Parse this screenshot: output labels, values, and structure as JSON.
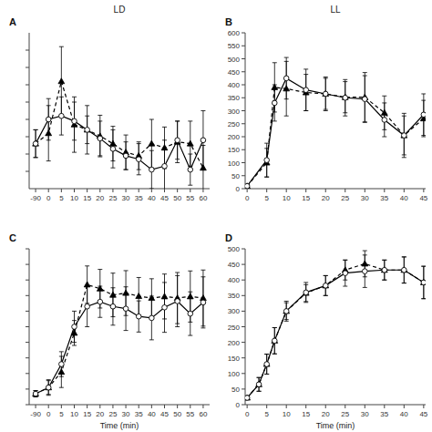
{
  "chart_data": [
    {
      "type": "line",
      "title": "A",
      "subtitle": "LD",
      "categories": [
        "-90",
        "0",
        "5",
        "10",
        "15",
        "20",
        "25",
        "30",
        "35",
        "40",
        "45",
        "50",
        "55",
        "60"
      ],
      "series": [
        {
          "values": [
            230,
            300,
            310,
            295,
            270,
            245,
            215,
            195,
            185,
            155,
            165,
            240,
            155,
            240
          ],
          "errors": [
            40,
            60,
            55,
            55,
            40,
            50,
            55,
            40,
            45,
            55,
            75,
            55,
            45,
            85
          ],
          "color": "#000000",
          "marker": "open-circle",
          "line_style": "solid"
        },
        {
          "values": [
            230,
            260,
            410,
            285,
            270,
            252,
            230,
            205,
            195,
            230,
            218,
            235,
            230,
            160
          ],
          "errors": [
            40,
            80,
            100,
            80,
            70,
            60,
            50,
            50,
            40,
            70,
            60,
            60,
            65,
            65
          ],
          "color": "#000000",
          "marker": "triangle",
          "line_style": "dashed"
        }
      ],
      "ylim": [
        100,
        550
      ],
      "yticks": [
        150,
        200,
        250,
        300,
        350,
        400,
        450,
        500
      ],
      "tick_labels": "x",
      "grid": false
    },
    {
      "type": "line",
      "title": "B",
      "subtitle": "LL",
      "x": [
        0,
        5,
        7,
        10,
        15,
        20,
        25,
        30,
        35,
        40,
        45
      ],
      "series": [
        {
          "values": [
            10,
            110,
            330,
            425,
            380,
            365,
            350,
            345,
            265,
            205,
            285
          ],
          "errors": [
            5,
            65,
            70,
            80,
            80,
            60,
            70,
            90,
            65,
            85,
            80
          ],
          "color": "#000000",
          "marker": "open-circle",
          "line_style": "solid"
        },
        {
          "values": [
            10,
            100,
            390,
            385,
            370,
            365,
            352,
            352,
            292,
            205,
            270
          ],
          "errors": [
            5,
            55,
            95,
            105,
            70,
            65,
            60,
            95,
            65,
            75,
            70
          ],
          "color": "#000000",
          "marker": "triangle",
          "line_style": "dashed"
        }
      ],
      "xlim": [
        -0.5,
        45.5
      ],
      "xticks": [
        0,
        5,
        10,
        15,
        20,
        25,
        30,
        35,
        40,
        45
      ],
      "ylim": [
        0,
        600
      ],
      "yticks": [
        0,
        50,
        100,
        150,
        200,
        250,
        300,
        350,
        400,
        450,
        500,
        550,
        600
      ],
      "tick_labels": true,
      "grid": false
    },
    {
      "type": "line",
      "title": "C",
      "x_label": "Time (min)",
      "categories": [
        "-90",
        "0",
        "5",
        "10",
        "15",
        "20",
        "25",
        "30",
        "35",
        "40",
        "45",
        "50",
        "55",
        "60"
      ],
      "series": [
        {
          "values": [
            35,
            55,
            130,
            250,
            315,
            330,
            315,
            308,
            283,
            278,
            312,
            332,
            292,
            328
          ],
          "errors": [
            10,
            25,
            40,
            50,
            65,
            50,
            60,
            70,
            50,
            70,
            80,
            82,
            70,
            82
          ],
          "color": "#000000",
          "marker": "open-circle",
          "line_style": "solid"
        },
        {
          "values": [
            35,
            55,
            105,
            230,
            385,
            372,
            352,
            358,
            348,
            342,
            347,
            342,
            347,
            342
          ],
          "errors": [
            10,
            22,
            50,
            40,
            60,
            62,
            70,
            72,
            60,
            62,
            72,
            82,
            82,
            90
          ],
          "color": "#000000",
          "marker": "triangle",
          "line_style": "dashed"
        }
      ],
      "ylim": [
        0,
        500
      ],
      "yticks": [
        0,
        50,
        100,
        150,
        200,
        250,
        300,
        350,
        400,
        450,
        500
      ],
      "tick_labels": "x",
      "grid": false
    },
    {
      "type": "line",
      "title": "D",
      "x_label": "Time (min)",
      "x": [
        0,
        3,
        5,
        7,
        10,
        15,
        20,
        25,
        30,
        35,
        40,
        45
      ],
      "series": [
        {
          "values": [
            22,
            65,
            130,
            205,
            300,
            360,
            382,
            422,
            428,
            432,
            432,
            392
          ],
          "errors": [
            5,
            22,
            32,
            42,
            32,
            32,
            32,
            42,
            52,
            32,
            42,
            52
          ],
          "color": "#000000",
          "marker": "open-circle",
          "line_style": "solid"
        },
        {
          "values": [
            22,
            65,
            130,
            205,
            300,
            358,
            382,
            432,
            452,
            432,
            432,
            392
          ],
          "errors": [
            5,
            22,
            32,
            42,
            27,
            27,
            32,
            32,
            42,
            32,
            42,
            52
          ],
          "color": "#000000",
          "marker": "triangle",
          "line_style": "dashed"
        }
      ],
      "xlim": [
        -0.5,
        45.5
      ],
      "xticks": [
        0,
        5,
        10,
        15,
        20,
        25,
        30,
        35,
        40,
        45
      ],
      "ylim": [
        0,
        500
      ],
      "yticks": [
        0,
        50,
        100,
        150,
        200,
        250,
        300,
        350,
        400,
        450,
        500
      ],
      "tick_labels": true,
      "grid": false
    }
  ]
}
